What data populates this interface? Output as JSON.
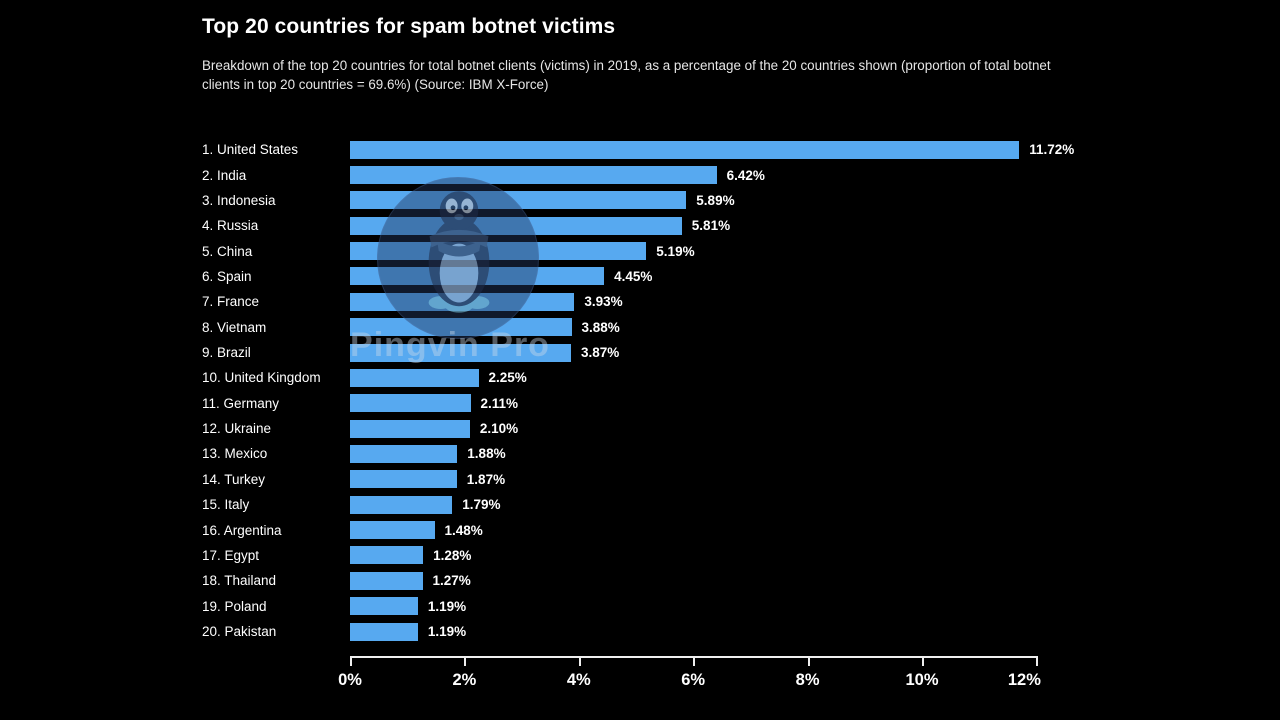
{
  "title": "Top 20 countries for spam botnet victims",
  "subtitle": "Breakdown of the top 20 countries for total botnet clients (victims) in 2019, as a percentage of the 20 countries shown (proportion of total botnet clients in top 20 countries = 69.6%) (Source: IBM X-Force)",
  "watermark": {
    "text": "Pingvin Pro",
    "icon": "penguin-logo-icon"
  },
  "colors": {
    "background": "#000000",
    "bar": "#57a9f0",
    "label_text": "#ffffff",
    "subtitle_text": "#e6e6e6",
    "axis": "#efefef"
  },
  "chart_data": {
    "type": "bar",
    "orientation": "horizontal",
    "title": "Top 20 countries for spam botnet victims",
    "categories": [
      "1. United States",
      "2. India",
      "3. Indonesia",
      "4. Russia",
      "5. China",
      "6. Spain",
      "7. France",
      "8. Vietnam",
      "9. Brazil",
      "10. United Kingdom",
      "11. Germany",
      "12. Ukraine",
      "13. Mexico",
      "14. Turkey",
      "15. Italy",
      "16. Argentina",
      "17. Egypt",
      "18. Thailand",
      "19. Poland",
      "20. Pakistan"
    ],
    "values": [
      11.72,
      6.42,
      5.89,
      5.81,
      5.19,
      4.45,
      3.93,
      3.88,
      3.87,
      2.25,
      2.11,
      2.1,
      1.88,
      1.87,
      1.79,
      1.48,
      1.28,
      1.27,
      1.19,
      1.19
    ],
    "value_labels": [
      "11.72%",
      "6.42%",
      "5.89%",
      "5.81%",
      "5.19%",
      "4.45%",
      "3.93%",
      "3.88%",
      "3.87%",
      "2.25%",
      "2.11%",
      "2.10%",
      "1.88%",
      "1.87%",
      "1.79%",
      "1.48%",
      "1.28%",
      "1.27%",
      "1.19%",
      "1.19%"
    ],
    "xlabel": "",
    "ylabel": "",
    "x_ticks": [
      "0%",
      "2%",
      "4%",
      "6%",
      "8%",
      "10%",
      "12%"
    ],
    "xlim": [
      0,
      12
    ],
    "grid": false,
    "legend": false,
    "unit": "%"
  }
}
